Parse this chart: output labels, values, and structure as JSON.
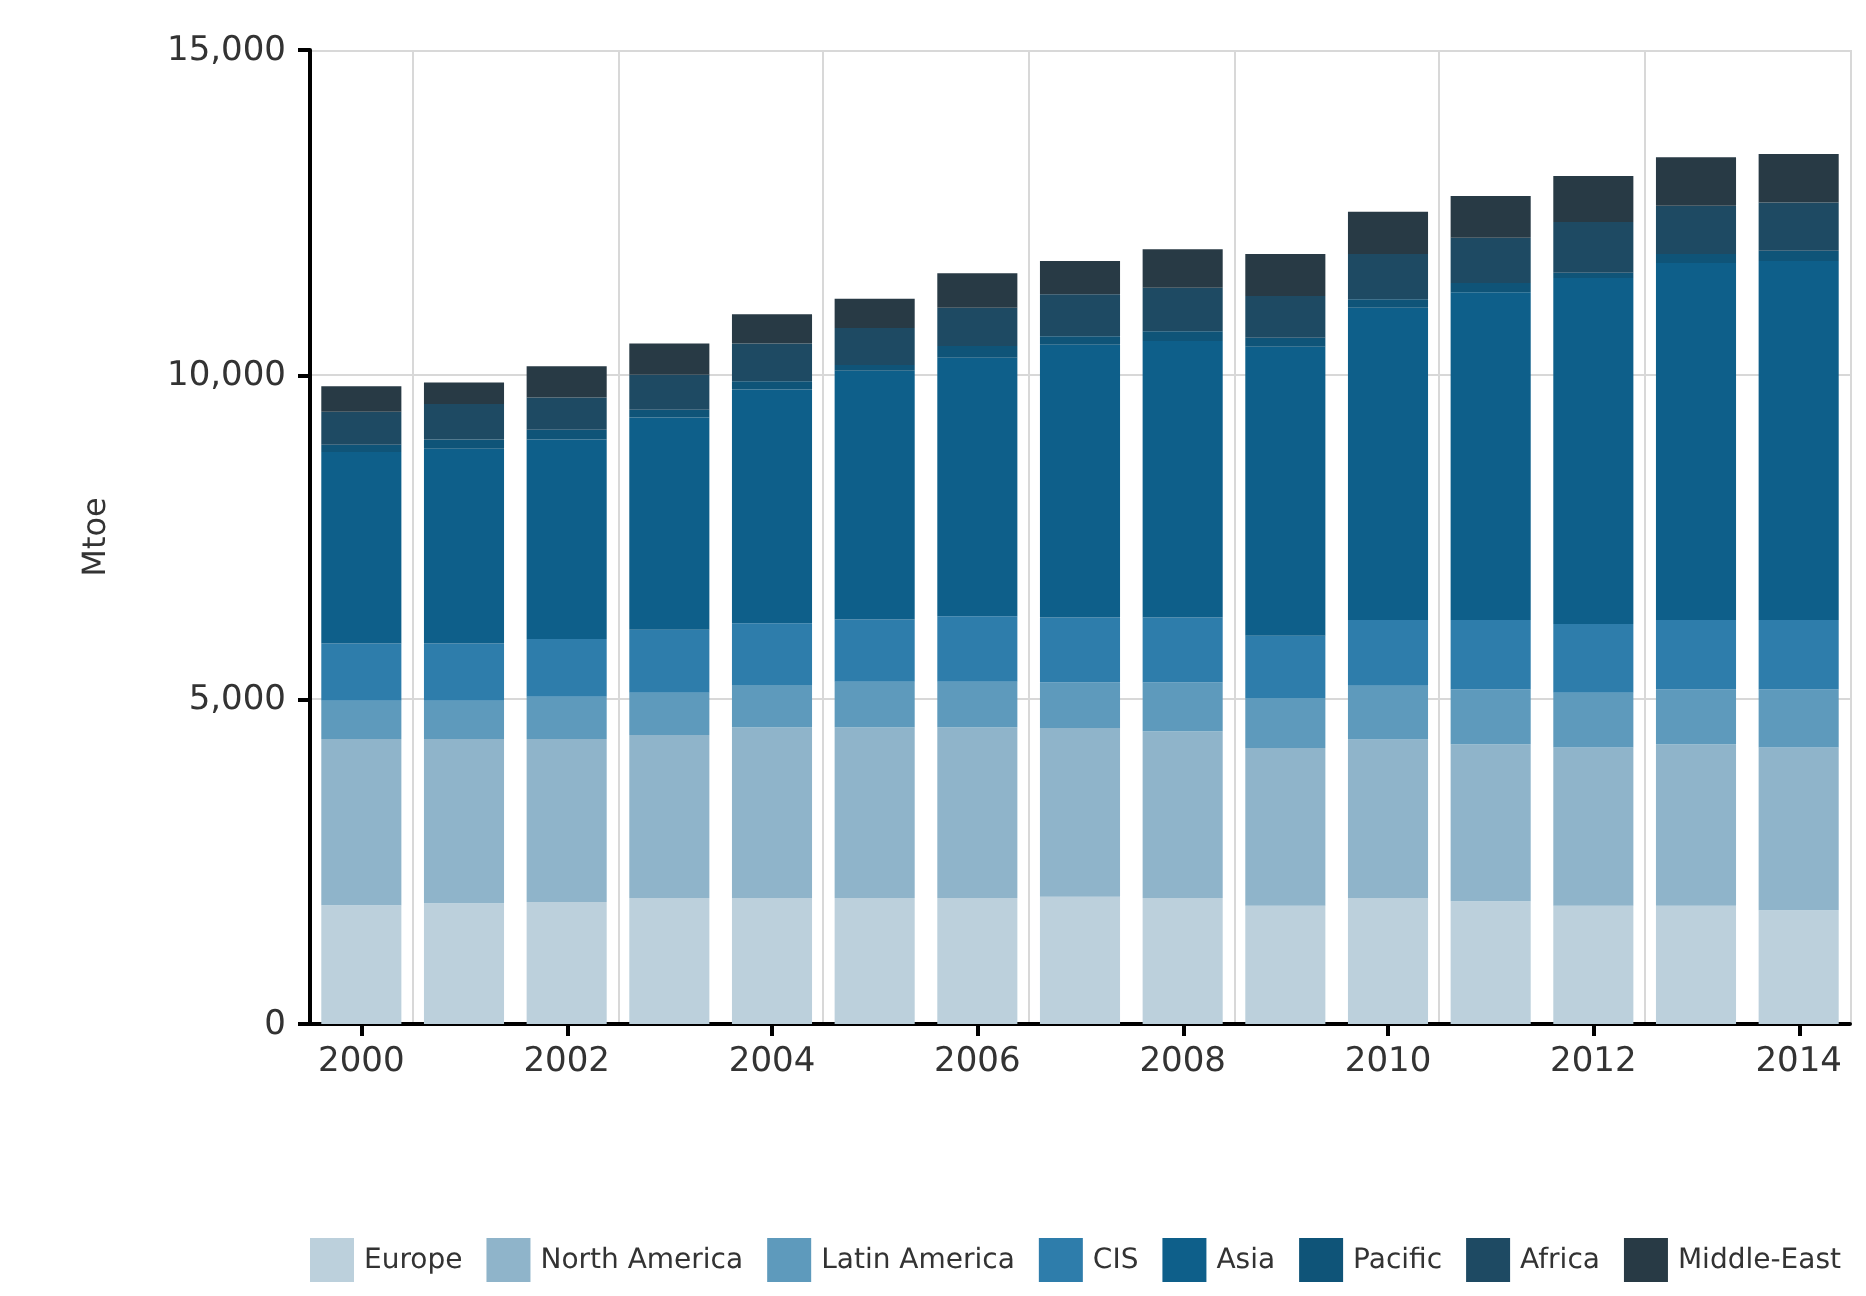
{
  "chart_data": {
    "type": "bar",
    "stacked": true,
    "ylabel": "Mtoe",
    "categories": [
      "2000",
      null,
      "2002",
      null,
      "2004",
      null,
      "2006",
      null,
      "2008",
      null,
      "2010",
      null,
      "2012",
      null,
      "2014"
    ],
    "ylim": [
      0,
      15000
    ],
    "yticks": [
      {
        "value": 0,
        "label": "0"
      },
      {
        "value": 5000,
        "label": "5,000"
      },
      {
        "value": 10000,
        "label": "10,000"
      },
      {
        "value": 15000,
        "label": "15,000"
      }
    ],
    "grid": true,
    "legend": "bottom",
    "series": [
      {
        "name": "Europe",
        "color": "#bcd0dc",
        "values": [
          1830,
          1860,
          1880,
          1940,
          1940,
          1940,
          1940,
          1960,
          1940,
          1820,
          1940,
          1890,
          1820,
          1820,
          1750
        ]
      },
      {
        "name": "North America",
        "color": "#8fb4ca",
        "values": [
          2560,
          2530,
          2510,
          2510,
          2630,
          2630,
          2630,
          2600,
          2570,
          2430,
          2440,
          2420,
          2440,
          2490,
          2510
        ]
      },
      {
        "name": "Latin America",
        "color": "#5e9abc",
        "values": [
          590,
          590,
          650,
          650,
          650,
          700,
          700,
          700,
          750,
          770,
          830,
          840,
          840,
          840,
          890
        ]
      },
      {
        "name": "CIS",
        "color": "#2e7dab",
        "values": [
          880,
          880,
          890,
          970,
          950,
          960,
          1010,
          1000,
          1000,
          960,
          1010,
          1070,
          1060,
          1070,
          1070
        ]
      },
      {
        "name": "Asia",
        "color": "#0e5f8a",
        "values": [
          2950,
          3000,
          3070,
          3270,
          3600,
          3830,
          3980,
          4200,
          4260,
          4450,
          4810,
          5050,
          5330,
          5500,
          5530
        ]
      },
      {
        "name": "Pacific",
        "color": "#0f5478",
        "values": [
          110,
          140,
          150,
          120,
          130,
          90,
          180,
          130,
          150,
          140,
          130,
          140,
          80,
          140,
          160
        ]
      },
      {
        "name": "Africa",
        "color": "#1e4a63",
        "values": [
          510,
          550,
          500,
          540,
          580,
          570,
          590,
          650,
          670,
          640,
          700,
          700,
          780,
          740,
          740
        ]
      },
      {
        "name": "Middle-East",
        "color": "#283a45",
        "values": [
          390,
          330,
          480,
          480,
          450,
          450,
          530,
          510,
          590,
          650,
          650,
          640,
          710,
          750,
          750
        ]
      }
    ]
  }
}
